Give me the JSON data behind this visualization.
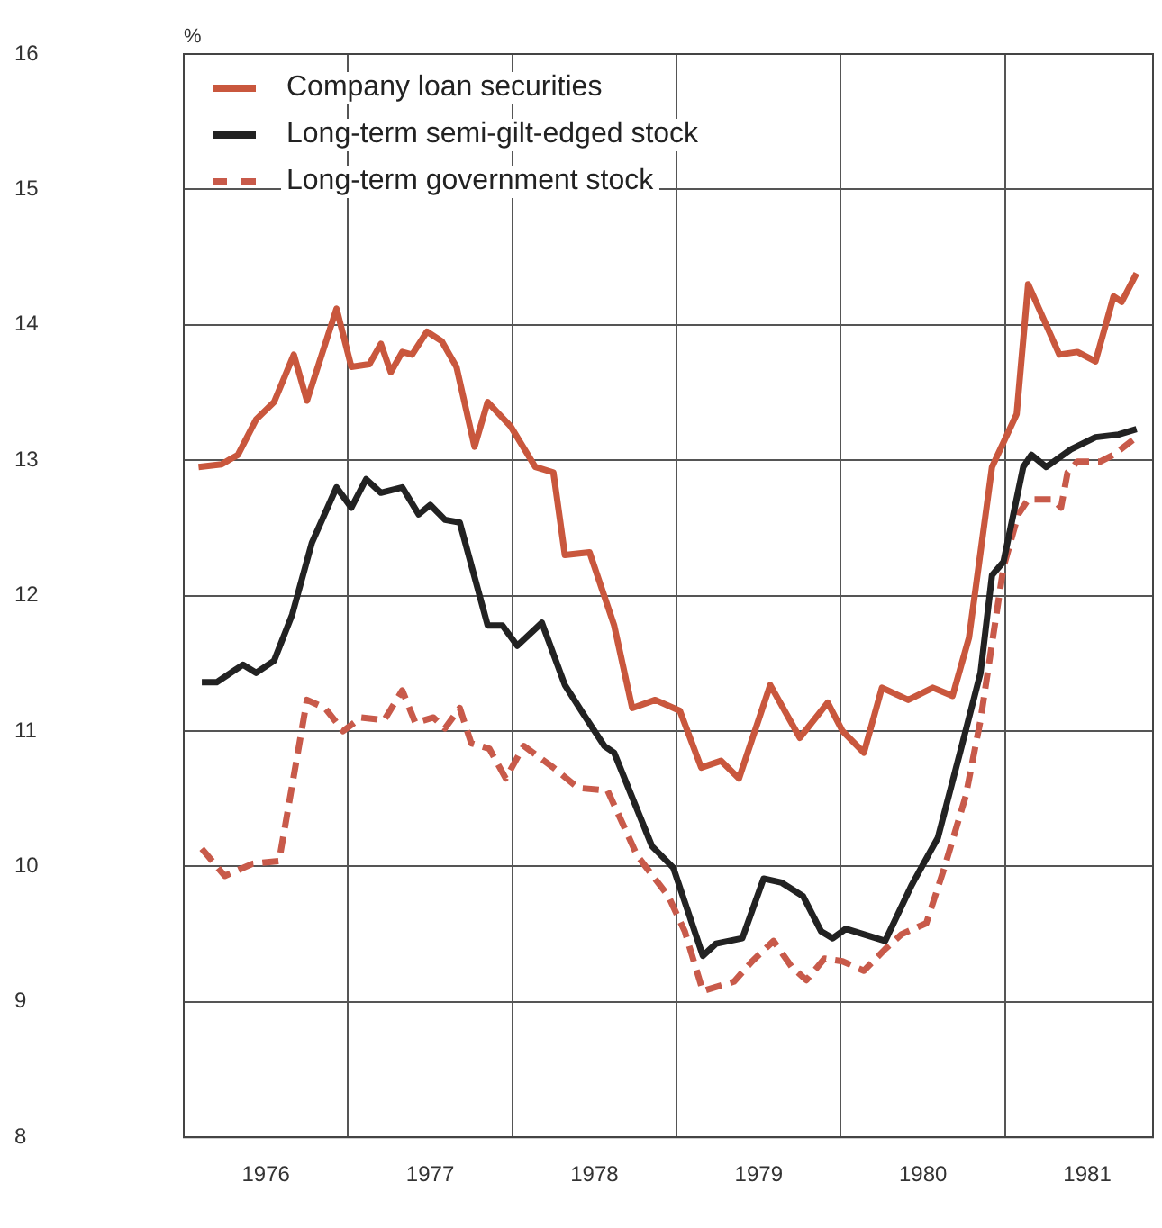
{
  "chart_data": {
    "type": "line",
    "ylabel": "%",
    "legend": "top left",
    "grid": true,
    "marker": "none",
    "xlim": [
      1976,
      1981.9
    ],
    "xticks": [
      {
        "value": 1976,
        "label": null
      },
      {
        "value": 1976.5,
        "label": "1976"
      },
      {
        "value": 1977,
        "label": null
      },
      {
        "value": 1977.5,
        "label": "1977"
      },
      {
        "value": 1978,
        "label": null
      },
      {
        "value": 1978.5,
        "label": "1978"
      },
      {
        "value": 1979,
        "label": null
      },
      {
        "value": 1979.5,
        "label": "1979"
      },
      {
        "value": 1980,
        "label": null
      },
      {
        "value": 1980.5,
        "label": "1980"
      },
      {
        "value": 1981,
        "label": null
      },
      {
        "value": 1981.5,
        "label": "1981"
      }
    ],
    "ylim": [
      8,
      16
    ],
    "yticks": [
      8,
      9,
      10,
      11,
      12,
      13,
      14,
      15,
      16
    ],
    "series": [
      {
        "name": "Company loan securities",
        "color": "#c9573d",
        "line_style": "solid",
        "x": [
          1976.09,
          1976.23,
          1976.33,
          1976.44,
          1976.55,
          1976.67,
          1976.75,
          1976.93,
          1977.02,
          1977.13,
          1977.2,
          1977.26,
          1977.33,
          1977.39,
          1977.48,
          1977.57,
          1977.66,
          1977.77,
          1977.85,
          1977.99,
          1978.14,
          1978.25,
          1978.32,
          1978.47,
          1978.62,
          1978.73,
          1978.87,
          1979.02,
          1979.15,
          1979.27,
          1979.38,
          1979.57,
          1979.75,
          1979.92,
          1980.01,
          1980.14,
          1980.25,
          1980.41,
          1980.56,
          1980.68,
          1980.78,
          1980.92,
          1981.07,
          1981.14,
          1981.33,
          1981.44,
          1981.55,
          1981.66,
          1981.71,
          1981.8
        ],
        "values": [
          12.95,
          12.97,
          13.04,
          13.3,
          13.43,
          13.78,
          13.44,
          14.12,
          13.69,
          13.71,
          13.86,
          13.65,
          13.8,
          13.78,
          13.95,
          13.88,
          13.69,
          13.1,
          13.43,
          13.25,
          12.95,
          12.91,
          12.3,
          12.32,
          11.78,
          11.17,
          11.23,
          11.15,
          10.73,
          10.78,
          10.65,
          11.34,
          10.95,
          11.21,
          11.0,
          10.84,
          11.32,
          11.23,
          11.32,
          11.26,
          11.69,
          12.95,
          13.34,
          14.3,
          13.78,
          13.8,
          13.73,
          14.21,
          14.17,
          14.38
        ]
      },
      {
        "name": "Long-term semi-gilt-edged stock",
        "color": "#222222",
        "line_style": "solid",
        "x": [
          1976.11,
          1976.2,
          1976.36,
          1976.44,
          1976.55,
          1976.66,
          1976.78,
          1976.93,
          1977.02,
          1977.11,
          1977.2,
          1977.33,
          1977.43,
          1977.5,
          1977.59,
          1977.68,
          1977.85,
          1977.94,
          1978.03,
          1978.18,
          1978.32,
          1978.43,
          1978.56,
          1978.62,
          1978.85,
          1978.98,
          1979.16,
          1979.24,
          1979.4,
          1979.53,
          1979.64,
          1979.77,
          1979.88,
          1979.95,
          1980.03,
          1980.27,
          1980.43,
          1980.59,
          1980.74,
          1980.85,
          1980.92,
          1980.99,
          1981.11,
          1981.16,
          1981.25,
          1981.4,
          1981.55,
          1981.69,
          1981.8
        ],
        "values": [
          11.36,
          11.36,
          11.49,
          11.43,
          11.52,
          11.86,
          12.39,
          12.8,
          12.65,
          12.86,
          12.76,
          12.8,
          12.6,
          12.67,
          12.56,
          12.54,
          11.78,
          11.78,
          11.63,
          11.8,
          11.34,
          11.13,
          10.89,
          10.84,
          10.15,
          9.99,
          9.34,
          9.43,
          9.47,
          9.91,
          9.88,
          9.78,
          9.52,
          9.47,
          9.54,
          9.45,
          9.86,
          10.21,
          10.91,
          11.43,
          12.15,
          12.25,
          12.95,
          13.04,
          12.95,
          13.08,
          13.17,
          13.19,
          13.23
        ]
      },
      {
        "name": "Long-term government stock",
        "color": "#c85a4a",
        "line_style": "dashed",
        "x": [
          1976.11,
          1976.25,
          1976.42,
          1976.58,
          1976.75,
          1976.86,
          1976.97,
          1977.08,
          1977.22,
          1977.33,
          1977.41,
          1977.52,
          1977.59,
          1977.68,
          1977.75,
          1977.86,
          1977.96,
          1978.07,
          1978.25,
          1978.4,
          1978.58,
          1978.76,
          1978.95,
          1979.05,
          1979.16,
          1979.35,
          1979.46,
          1979.59,
          1979.7,
          1979.79,
          1979.9,
          1980.01,
          1980.14,
          1980.27,
          1980.37,
          1980.52,
          1980.63,
          1980.76,
          1980.85,
          1980.99,
          1981.08,
          1981.14,
          1981.29,
          1981.34,
          1981.38,
          1981.44,
          1981.58,
          1981.66,
          1981.8
        ],
        "values": [
          10.13,
          9.93,
          10.02,
          10.04,
          11.23,
          11.17,
          11.0,
          11.1,
          11.08,
          11.3,
          11.06,
          11.1,
          11.02,
          11.17,
          10.91,
          10.87,
          10.65,
          10.89,
          10.73,
          10.58,
          10.56,
          10.08,
          9.78,
          9.52,
          9.08,
          9.15,
          9.3,
          9.45,
          9.26,
          9.16,
          9.32,
          9.3,
          9.23,
          9.39,
          9.5,
          9.58,
          9.99,
          10.52,
          11.08,
          12.21,
          12.6,
          12.71,
          12.71,
          12.65,
          12.91,
          12.99,
          12.99,
          13.04,
          13.17
        ]
      }
    ]
  }
}
